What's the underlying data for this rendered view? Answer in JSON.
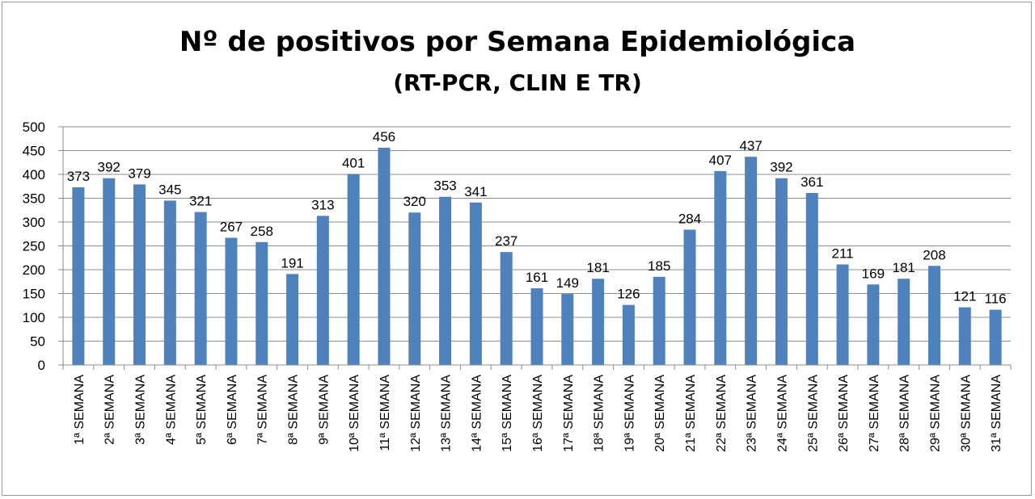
{
  "chart_data": {
    "type": "bar",
    "title": "Nº de positivos por Semana Epidemiológica",
    "subtitle": "(RT-PCR, CLIN E TR)",
    "xlabel": "",
    "ylabel": "",
    "ylim": [
      0,
      500
    ],
    "yticks": [
      0,
      50,
      100,
      150,
      200,
      250,
      300,
      350,
      400,
      450,
      500
    ],
    "grid": true,
    "legend": "none",
    "bar_color": "#4f81bd",
    "categories": [
      "1ª SEMANA",
      "2ª SEMANA",
      "3ª SEMANA",
      "4ª SEMANA",
      "5ª SEMANA",
      "6ª SEMANA",
      "7ª SEMANA",
      "8ª SEMANA",
      "9ª SEMANA",
      "10ª SEMANA",
      "11ª SEMANA",
      "12ª SEMANA",
      "13ª SEMANA",
      "14ª SEMANA",
      "15ª SEMANA",
      "16ª SEMANA",
      "17ª SEMANA",
      "18ª SEMANA",
      "19ª SEMANA",
      "20ª SEMANA",
      "21ª SEMANA",
      "22ª SEMANA",
      "23ª SEMANA",
      "24ª SEMANA",
      "25ª SEMANA",
      "26ª SEMANA",
      "27ª SEMANA",
      "28ª SEMANA",
      "29ª SEMANA",
      "30ª SEMANA",
      "31ª SEMANA"
    ],
    "values": [
      373,
      392,
      379,
      345,
      321,
      267,
      258,
      191,
      313,
      401,
      456,
      320,
      353,
      341,
      237,
      161,
      149,
      181,
      126,
      185,
      284,
      407,
      437,
      392,
      361,
      211,
      169,
      181,
      208,
      121,
      116
    ]
  }
}
